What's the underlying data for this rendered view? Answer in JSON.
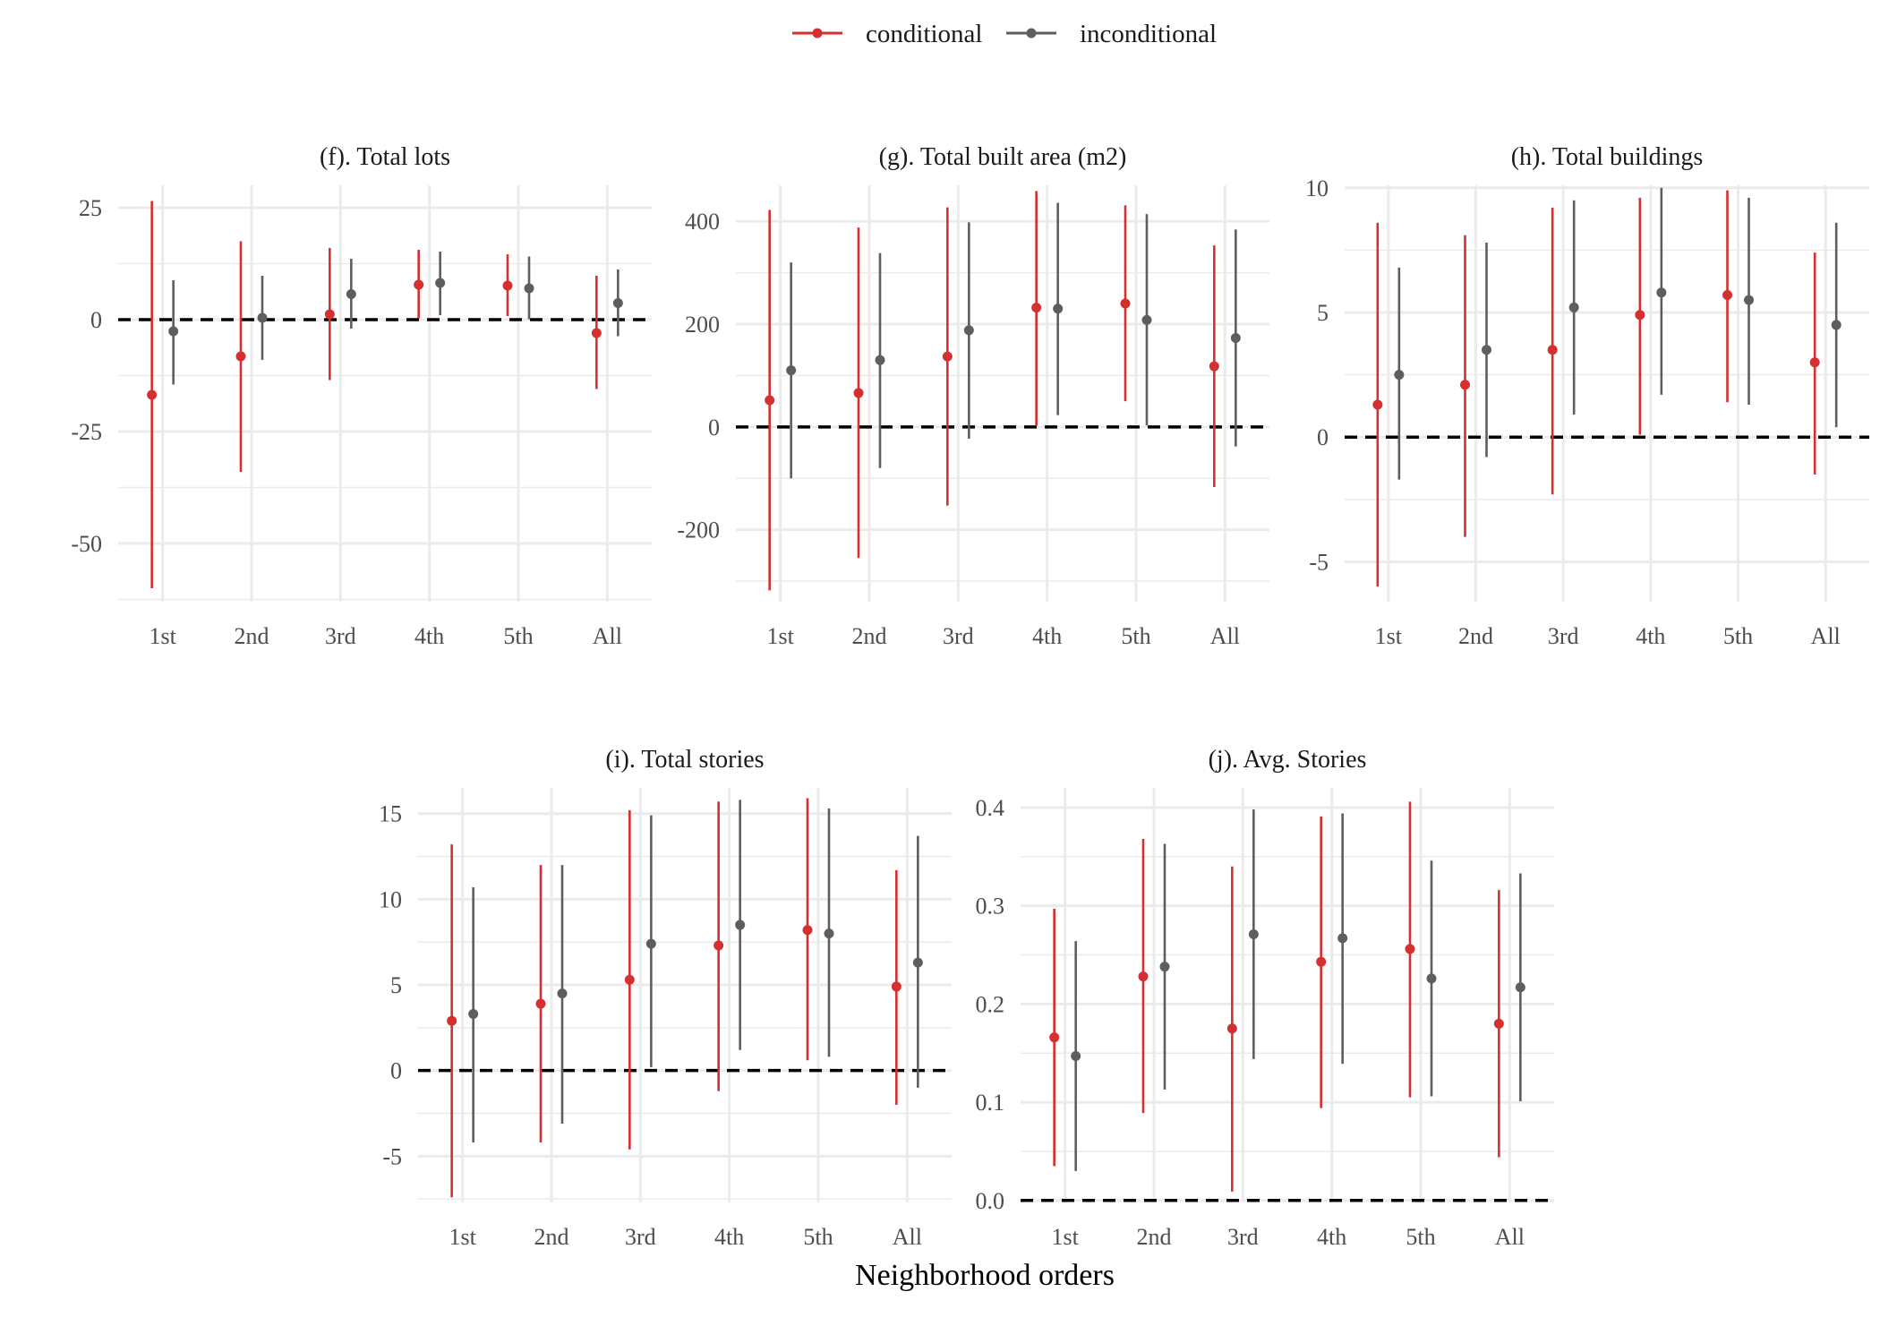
{
  "legend": {
    "items": [
      {
        "label": "conditional",
        "color": "#d62f2f"
      },
      {
        "label": "inconditional",
        "color": "#5e5e5e"
      }
    ]
  },
  "x_axis_title": "Neighborhood orders",
  "chart_data": [
    {
      "type": "pointrange",
      "id": "f",
      "title": "(f). Total lots",
      "categories": [
        "1st",
        "2nd",
        "3rd",
        "4th",
        "5th",
        "All"
      ],
      "ylim": [
        -63,
        30
      ],
      "yticks": [
        -50,
        -25,
        0,
        25
      ],
      "ytick_labels": [
        "-50",
        "-25",
        "0",
        "25"
      ],
      "reference_line": 0,
      "series": [
        {
          "name": "conditional",
          "color": "#d62f2f",
          "estimates": [
            -16.8,
            -8.2,
            1.2,
            7.8,
            7.6,
            -3.0
          ],
          "lower": [
            -60,
            -34,
            -13.5,
            0.3,
            0.8,
            -15.5
          ],
          "upper": [
            26.5,
            17.5,
            16,
            15.6,
            14.6,
            9.8
          ]
        },
        {
          "name": "inconditional",
          "color": "#5e5e5e",
          "estimates": [
            -2.6,
            0.4,
            5.7,
            8.2,
            7.0,
            3.7
          ],
          "lower": [
            -14.5,
            -9.0,
            -2.0,
            1.0,
            0.1,
            -3.7
          ],
          "upper": [
            8.8,
            9.8,
            13.6,
            15.2,
            14.1,
            11.2
          ]
        }
      ]
    },
    {
      "type": "pointrange",
      "id": "g",
      "title": "(g). Total built area (m2)",
      "categories": [
        "1st",
        "2nd",
        "3rd",
        "4th",
        "5th",
        "All"
      ],
      "ylim": [
        -340,
        470
      ],
      "yticks": [
        -200,
        0,
        200,
        400
      ],
      "ytick_labels": [
        "-200",
        "0",
        "200",
        "400"
      ],
      "reference_line": 0,
      "series": [
        {
          "name": "conditional",
          "color": "#d62f2f",
          "estimates": [
            52,
            66,
            137,
            232,
            240,
            118
          ],
          "lower": [
            -318,
            -255,
            -153,
            2,
            50,
            -117
          ],
          "upper": [
            422,
            388,
            427,
            459,
            431,
            353
          ]
        },
        {
          "name": "inconditional",
          "color": "#5e5e5e",
          "estimates": [
            110,
            130,
            188,
            230,
            208,
            173
          ],
          "lower": [
            -100,
            -80,
            -23,
            23,
            3,
            -38
          ],
          "upper": [
            320,
            338,
            398,
            436,
            414,
            384
          ]
        }
      ]
    },
    {
      "type": "pointrange",
      "id": "h",
      "title": "(h). Total buildings",
      "categories": [
        "1st",
        "2nd",
        "3rd",
        "4th",
        "5th",
        "All"
      ],
      "ylim": [
        -6.6,
        10.1
      ],
      "yticks": [
        -5,
        0,
        5,
        10
      ],
      "ytick_labels": [
        "-5",
        "0",
        "5",
        "10"
      ],
      "reference_line": 0,
      "series": [
        {
          "name": "conditional",
          "color": "#d62f2f",
          "estimates": [
            1.3,
            2.1,
            3.5,
            4.9,
            5.7,
            3.0
          ],
          "lower": [
            -6.0,
            -4.0,
            -2.3,
            0.1,
            1.4,
            -1.5
          ],
          "upper": [
            8.6,
            8.1,
            9.2,
            9.6,
            9.9,
            7.4
          ]
        },
        {
          "name": "inconditional",
          "color": "#5e5e5e",
          "estimates": [
            2.5,
            3.5,
            5.2,
            5.8,
            5.5,
            4.5
          ],
          "lower": [
            -1.7,
            -0.8,
            0.9,
            1.7,
            1.3,
            0.4
          ],
          "upper": [
            6.8,
            7.8,
            9.5,
            10.0,
            9.6,
            8.6
          ]
        }
      ]
    },
    {
      "type": "pointrange",
      "id": "i",
      "title": "(i). Total stories",
      "categories": [
        "1st",
        "2nd",
        "3rd",
        "4th",
        "5th",
        "All"
      ],
      "ylim": [
        -7.7,
        16.5
      ],
      "yticks": [
        -5,
        0,
        5,
        10,
        15
      ],
      "ytick_labels": [
        "-5",
        "0",
        "5",
        "10",
        "15"
      ],
      "reference_line": 0,
      "series": [
        {
          "name": "conditional",
          "color": "#d62f2f",
          "estimates": [
            2.9,
            3.9,
            5.3,
            7.3,
            8.2,
            4.9
          ],
          "lower": [
            -7.4,
            -4.2,
            -4.6,
            -1.2,
            0.6,
            -2.0
          ],
          "upper": [
            13.2,
            12.0,
            15.2,
            15.7,
            15.9,
            11.7
          ]
        },
        {
          "name": "inconditional",
          "color": "#5e5e5e",
          "estimates": [
            3.3,
            4.5,
            7.4,
            8.5,
            8.0,
            6.3
          ],
          "lower": [
            -4.2,
            -3.1,
            0.2,
            1.2,
            0.8,
            -1.0
          ],
          "upper": [
            10.7,
            12.0,
            14.9,
            15.8,
            15.3,
            13.7
          ]
        }
      ]
    },
    {
      "type": "pointrange",
      "id": "j",
      "title": "(j). Avg. Stories",
      "categories": [
        "1st",
        "2nd",
        "3rd",
        "4th",
        "5th",
        "All"
      ],
      "ylim": [
        -0.002,
        0.42
      ],
      "yticks": [
        0.0,
        0.1,
        0.2,
        0.3,
        0.4
      ],
      "ytick_labels": [
        "0.0",
        "0.1",
        "0.2",
        "0.3",
        "0.4"
      ],
      "reference_line": 0,
      "series": [
        {
          "name": "conditional",
          "color": "#d62f2f",
          "estimates": [
            0.166,
            0.228,
            0.175,
            0.243,
            0.256,
            0.18
          ],
          "lower": [
            0.035,
            0.089,
            0.009,
            0.094,
            0.105,
            0.044
          ],
          "upper": [
            0.297,
            0.368,
            0.34,
            0.391,
            0.406,
            0.316
          ]
        },
        {
          "name": "inconditional",
          "color": "#5e5e5e",
          "estimates": [
            0.147,
            0.238,
            0.271,
            0.267,
            0.226,
            0.217
          ],
          "lower": [
            0.03,
            0.113,
            0.144,
            0.139,
            0.106,
            0.101
          ],
          "upper": [
            0.264,
            0.363,
            0.398,
            0.394,
            0.346,
            0.333
          ]
        }
      ]
    }
  ]
}
